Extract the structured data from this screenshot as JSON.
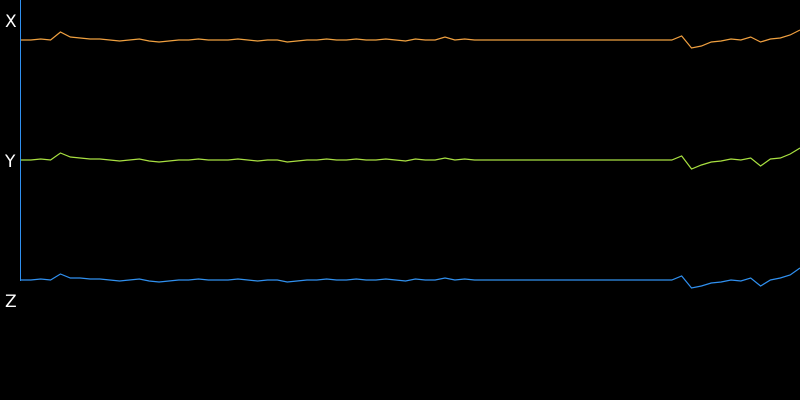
{
  "chart_data": {
    "type": "line",
    "series": [
      {
        "name": "X",
        "color": "#f0a040",
        "values": [
          0,
          0,
          1,
          0,
          8,
          3,
          2,
          1,
          1,
          0,
          -1,
          0,
          1,
          -1,
          -2,
          -1,
          0,
          0,
          1,
          0,
          0,
          0,
          1,
          0,
          -1,
          0,
          0,
          -2,
          -1,
          0,
          0,
          1,
          0,
          0,
          1,
          0,
          0,
          1,
          0,
          -1,
          1,
          0,
          0,
          3,
          0,
          1,
          0,
          0,
          0,
          0,
          0,
          0,
          0,
          0,
          0,
          0,
          0,
          0,
          0,
          0,
          0,
          0,
          0,
          0,
          0,
          0,
          0,
          4,
          -8,
          -6,
          -2,
          -1,
          1,
          0,
          3,
          -2,
          1,
          2,
          5,
          10
        ]
      },
      {
        "name": "Y",
        "color": "#a8e040",
        "values": [
          0,
          0,
          1,
          0,
          7,
          3,
          2,
          1,
          1,
          0,
          -1,
          0,
          1,
          -1,
          -2,
          -1,
          0,
          0,
          1,
          0,
          0,
          0,
          1,
          0,
          -1,
          0,
          0,
          -2,
          -1,
          0,
          0,
          1,
          0,
          0,
          1,
          0,
          0,
          1,
          0,
          -1,
          1,
          0,
          0,
          2,
          0,
          1,
          0,
          0,
          0,
          0,
          0,
          0,
          0,
          0,
          0,
          0,
          0,
          0,
          0,
          0,
          0,
          0,
          0,
          0,
          0,
          0,
          0,
          4,
          -9,
          -5,
          -2,
          -1,
          1,
          0,
          2,
          -6,
          1,
          2,
          6,
          12
        ]
      },
      {
        "name": "Z",
        "color": "#3090f0",
        "values": [
          0,
          0,
          1,
          0,
          6,
          2,
          2,
          1,
          1,
          0,
          -1,
          0,
          1,
          -1,
          -2,
          -1,
          0,
          0,
          1,
          0,
          0,
          0,
          1,
          0,
          -1,
          0,
          0,
          -2,
          -1,
          0,
          0,
          1,
          0,
          0,
          1,
          0,
          0,
          1,
          0,
          -1,
          1,
          0,
          0,
          2,
          0,
          1,
          0,
          0,
          0,
          0,
          0,
          0,
          0,
          0,
          0,
          0,
          0,
          0,
          0,
          0,
          0,
          0,
          0,
          0,
          0,
          0,
          0,
          4,
          -8,
          -6,
          -3,
          -2,
          0,
          -1,
          2,
          -6,
          0,
          2,
          5,
          12
        ]
      }
    ]
  }
}
